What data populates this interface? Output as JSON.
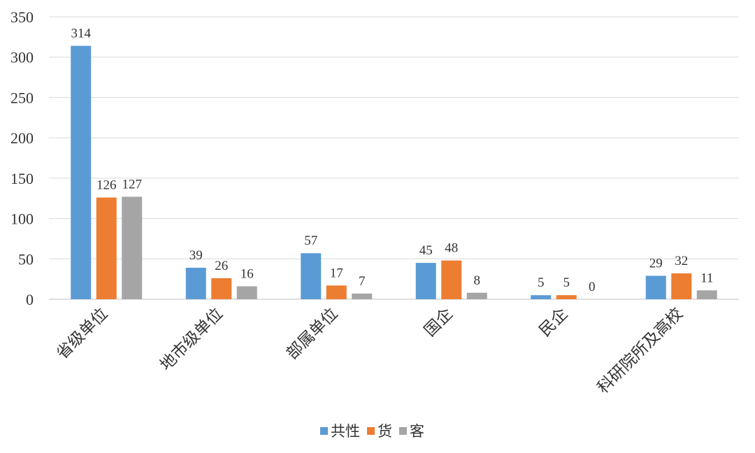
{
  "chart_data": {
    "type": "bar",
    "categories": [
      "省级单位",
      "地市级单位",
      "部属单位",
      "国企",
      "民企",
      "科研院所及高校"
    ],
    "series": [
      {
        "name": "共性",
        "values": [
          314,
          39,
          57,
          45,
          5,
          29
        ],
        "color": "#5b9bd5"
      },
      {
        "name": "货",
        "values": [
          126,
          26,
          17,
          48,
          5,
          32
        ],
        "color": "#ed7d31"
      },
      {
        "name": "客",
        "values": [
          127,
          16,
          7,
          8,
          0,
          11
        ],
        "color": "#a5a5a5"
      }
    ],
    "ylim": [
      0,
      350
    ],
    "yticks": [
      0,
      50,
      100,
      150,
      200,
      250,
      300,
      350
    ],
    "grid": true,
    "legend": "bottom"
  }
}
